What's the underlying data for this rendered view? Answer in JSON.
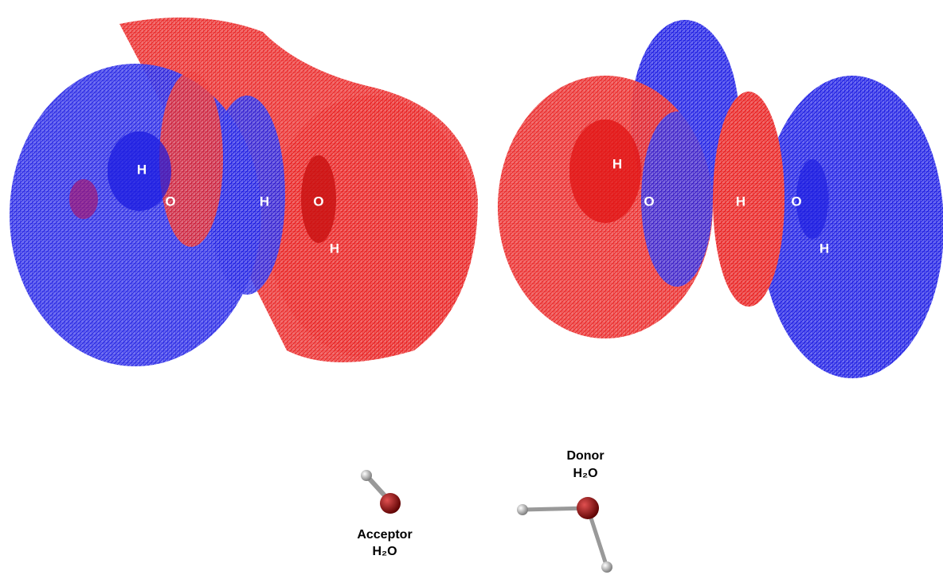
{
  "left_panel": {
    "atom_labels": [
      "H",
      "O",
      "H",
      "O",
      "H"
    ]
  },
  "right_panel": {
    "atom_labels": [
      "H",
      "O",
      "H",
      "O",
      "H"
    ]
  },
  "molecules": {
    "acceptor": {
      "name": "Acceptor",
      "formula": "H₂O"
    },
    "donor": {
      "name": "Donor",
      "formula": "H₂O"
    }
  }
}
